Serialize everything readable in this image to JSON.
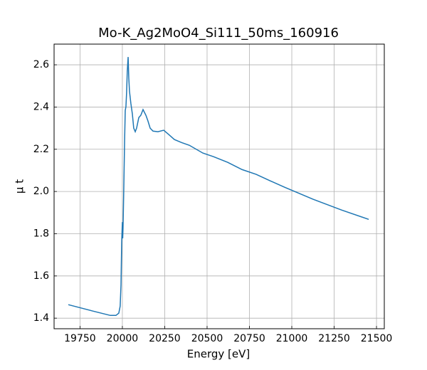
{
  "chart_data": {
    "type": "line",
    "title": "Mo-K_Ag2MoO4_Si111_50ms_160916",
    "x_label": "Energy [eV]",
    "y_label": "μ t",
    "x": [
      19681,
      19824,
      19929,
      19962,
      19979,
      19987,
      19992,
      19996,
      20000,
      20002,
      20004,
      20008,
      20013,
      20017,
      20021,
      20025,
      20029,
      20034,
      20038,
      20042,
      20050,
      20059,
      20067,
      20076,
      20084,
      20097,
      20109,
      20122,
      20139,
      20151,
      20164,
      20181,
      20210,
      20244,
      20269,
      20307,
      20349,
      20395,
      20475,
      20538,
      20622,
      20706,
      20790,
      20874,
      20958,
      21126,
      21294,
      21454
    ],
    "series": [
      {
        "color": "#1f77b4",
        "values": [
          1.464,
          1.434,
          1.413,
          1.413,
          1.424,
          1.457,
          1.558,
          1.761,
          1.855,
          1.778,
          1.828,
          1.997,
          2.232,
          2.384,
          2.401,
          2.468,
          2.57,
          2.637,
          2.536,
          2.475,
          2.418,
          2.367,
          2.3,
          2.283,
          2.3,
          2.35,
          2.361,
          2.388,
          2.361,
          2.334,
          2.3,
          2.286,
          2.283,
          2.29,
          2.273,
          2.246,
          2.232,
          2.219,
          2.182,
          2.165,
          2.138,
          2.104,
          2.081,
          2.05,
          2.02,
          1.963,
          1.912,
          1.868
        ]
      }
    ],
    "xlim": [
      19597,
      21546
    ],
    "ylim": [
      1.35,
      2.698
    ],
    "xticks": [
      19750,
      20000,
      20250,
      20500,
      20750,
      21000,
      21250,
      21500
    ],
    "yticks": [
      1.4,
      1.6,
      1.8,
      {
        "value": 2,
        "label": "2.0"
      },
      2.2,
      2.4,
      2.6
    ],
    "grid": true
  }
}
